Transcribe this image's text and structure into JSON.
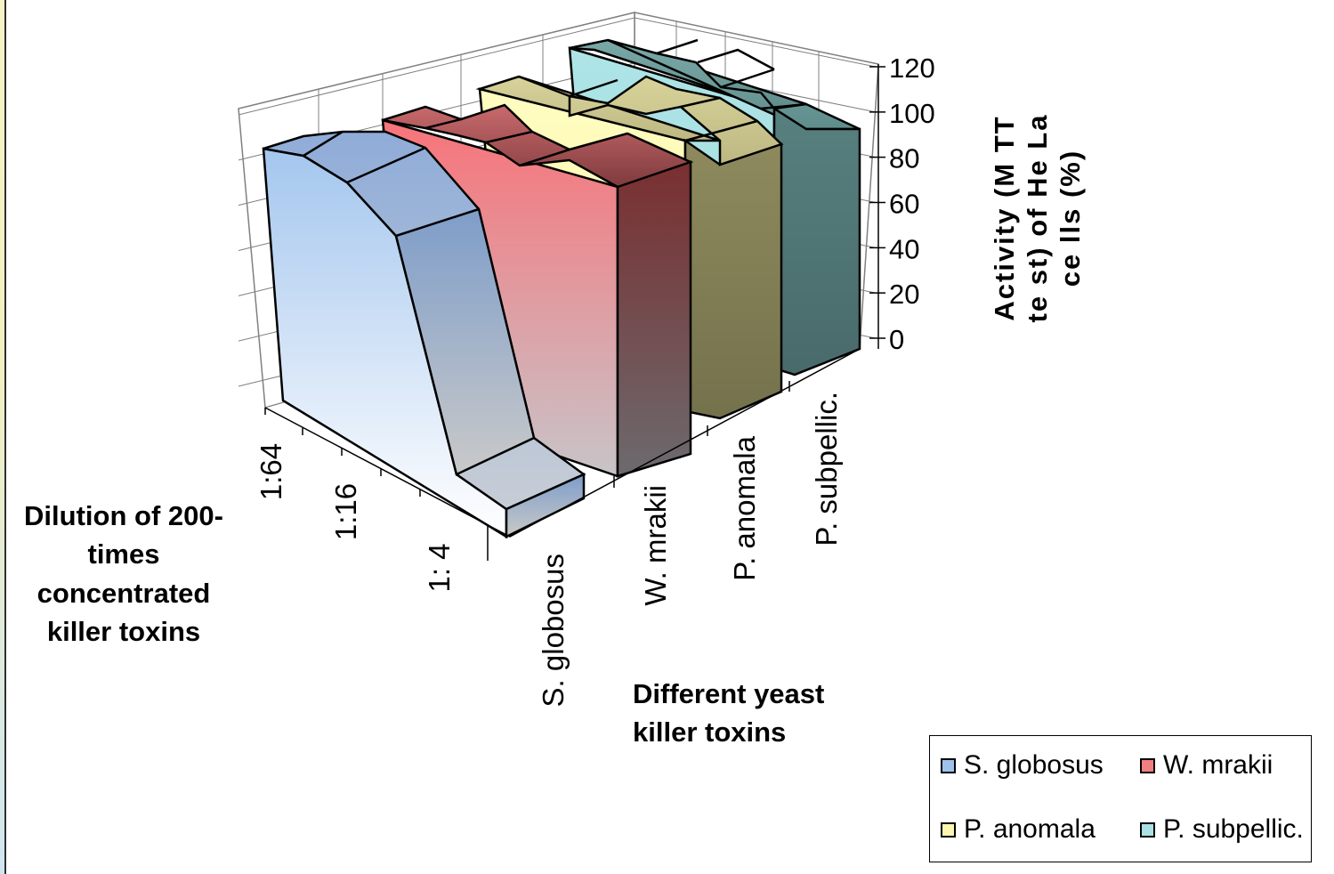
{
  "chart_data": {
    "type": "bar3d-area",
    "title": "",
    "xlabel": "Dilution of 200-times concentrated killer toxins",
    "zlabel": "Different yeast killer toxins",
    "ylabel": "Activity (MTT test) of HeLa cells (%)",
    "ylim": [
      0,
      120
    ],
    "yticks": [
      "0",
      "20",
      "40",
      "60",
      "80",
      "100",
      "120"
    ],
    "categories": [
      "1:64",
      "1:16",
      "1: 4"
    ],
    "series": [
      {
        "name": "S. globosus",
        "values": [
          90,
          90,
          10
        ],
        "color": "#9dc3ec"
      },
      {
        "name": "W. mrakii",
        "values": [
          100,
          100,
          100
        ],
        "color": "#f07f7f"
      },
      {
        "name": "P. anomala",
        "values": [
          110,
          110,
          110
        ],
        "color": "#fbf6b0"
      },
      {
        "name": "P. subpellic.",
        "values": [
          125,
          125,
          125
        ],
        "color": "#a9e0e3"
      }
    ],
    "legend_position": "bottom-right",
    "grid": true
  },
  "axis_titles": {
    "x_lines": [
      "Dilution of 200-",
      "times",
      "concentrated",
      "killer toxins"
    ],
    "z_lines": [
      "Different yeast",
      "killer toxins"
    ],
    "y_lines": [
      "Activity (M TT",
      "te st) of He La",
      "ce lls (%)"
    ]
  }
}
